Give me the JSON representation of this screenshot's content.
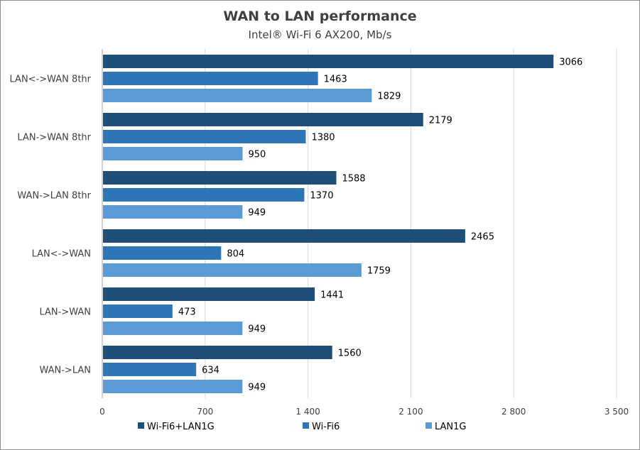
{
  "chart_data": {
    "type": "bar",
    "orientation": "horizontal",
    "title": "WAN to LAN performance",
    "subtitle": "Intel® Wi-Fi 6 AX200, Mb/s",
    "categories": [
      "LAN<->WAN 8thr",
      "LAN->WAN 8thr",
      "WAN->LAN 8thr",
      "LAN<->WAN",
      "LAN->WAN",
      "WAN->LAN"
    ],
    "series": [
      {
        "name": "Wi-Fi6+LAN1G",
        "color": "#1f4e79",
        "values": [
          3066,
          2179,
          1588,
          2465,
          1441,
          1560
        ]
      },
      {
        "name": "Wi-Fi6",
        "color": "#2e75b6",
        "values": [
          1463,
          1380,
          1370,
          804,
          473,
          634
        ]
      },
      {
        "name": "LAN1G",
        "color": "#5b9bd5",
        "values": [
          1829,
          950,
          949,
          1759,
          949,
          949
        ]
      }
    ],
    "xlim": [
      0,
      3500
    ],
    "xticks": [
      0,
      700,
      1400,
      2100,
      2800,
      3500
    ],
    "xtick_labels": [
      "0",
      "700",
      "1 400",
      "2 100",
      "2 800",
      "3 500"
    ],
    "xlabel": "",
    "ylabel": "",
    "grid": true,
    "data_labels": true,
    "legend": "bottom"
  }
}
